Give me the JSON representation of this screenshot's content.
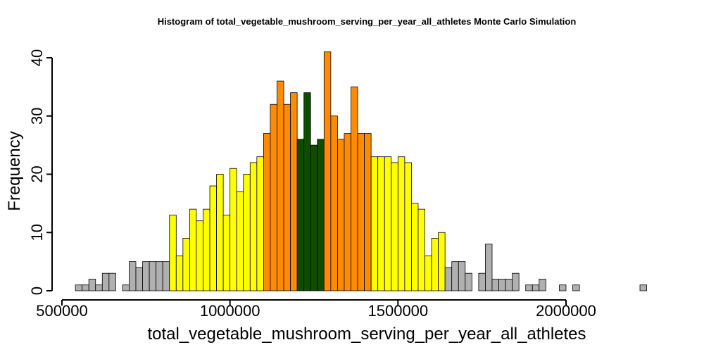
{
  "chart_data": {
    "type": "bar",
    "title": "Histogram of  total_vegetable_mushroom_serving_per_year_all_athletes  Monte Carlo Simulation",
    "xlabel": "total_vegetable_mushroom_serving_per_year_all_athletes",
    "ylabel": "Frequency",
    "x_ticks": [
      500000,
      1000000,
      1500000,
      2000000
    ],
    "x_tick_labels": [
      "500000",
      "1000000",
      "1500000",
      "2000000"
    ],
    "y_ticks": [
      0,
      10,
      20,
      30,
      40
    ],
    "y_tick_labels": [
      "0",
      "10",
      "20",
      "30",
      "40"
    ],
    "xlim": [
      500000,
      2300000
    ],
    "ylim": [
      0,
      41
    ],
    "bin_start": 540000,
    "bin_width": 20000,
    "values": [
      1,
      1,
      2,
      1,
      3,
      3,
      0,
      1,
      5,
      4,
      5,
      5,
      5,
      5,
      13,
      6,
      9,
      14,
      12,
      14,
      18,
      20,
      13,
      21,
      17,
      20,
      22,
      23,
      27,
      32,
      36,
      32,
      34,
      26,
      34,
      25,
      26,
      41,
      30,
      26,
      27,
      35,
      27,
      27,
      23,
      23,
      23,
      22,
      23,
      22,
      15,
      14,
      6,
      9,
      10,
      4,
      5,
      5,
      3,
      0,
      3,
      8,
      2,
      2,
      2,
      3,
      0,
      1,
      1,
      2,
      0,
      0,
      1,
      0,
      1,
      0,
      0,
      0,
      0,
      0,
      0,
      0,
      0,
      0,
      1
    ],
    "colors": {
      "tail": "#b0b0b0",
      "outer": "#ffff00",
      "inner": "#ff8c00",
      "center": "#0e4d00"
    },
    "color_bands": [
      {
        "from": 540000,
        "to": 820000,
        "color": "tail"
      },
      {
        "from": 820000,
        "to": 1100000,
        "color": "outer"
      },
      {
        "from": 1100000,
        "to": 1200000,
        "color": "inner"
      },
      {
        "from": 1200000,
        "to": 1280000,
        "color": "center"
      },
      {
        "from": 1280000,
        "to": 1420000,
        "color": "inner"
      },
      {
        "from": 1420000,
        "to": 1640000,
        "color": "outer"
      },
      {
        "from": 1640000,
        "to": 2240000,
        "color": "tail"
      }
    ],
    "grid": false,
    "legend": "none"
  }
}
